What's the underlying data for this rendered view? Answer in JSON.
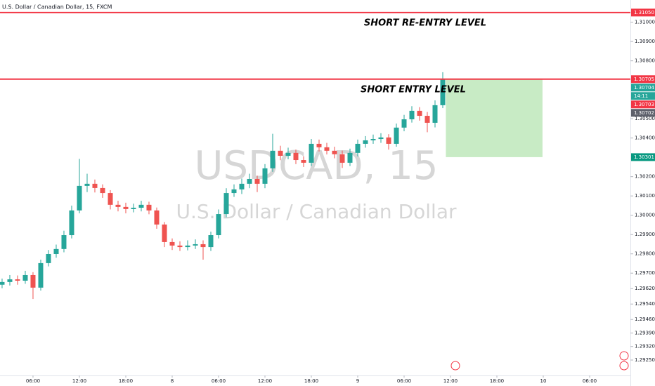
{
  "chart_data": {
    "type": "candlestick",
    "title": "U.S. Dollar / Canadian Dollar, 15, FXCM",
    "watermark": "USDCAD, 15",
    "watermark_subtitle": "U.S. Dollar / Canadian Dollar",
    "x": [
      2,
      3,
      4,
      5,
      6,
      7,
      8,
      9,
      10,
      11,
      12,
      13,
      14,
      15,
      16,
      17,
      18,
      19,
      20,
      21,
      22,
      23,
      24,
      25,
      26,
      27,
      28,
      29,
      30,
      31,
      32,
      33,
      34,
      35,
      36,
      37,
      38,
      39,
      40,
      41,
      42,
      43,
      44,
      45,
      46,
      47,
      48,
      49,
      50,
      51,
      52,
      53,
      54,
      55,
      56,
      57,
      58,
      59
    ],
    "open": [
      1.2964,
      1.29654,
      1.29668,
      1.29661,
      1.2969,
      1.29625,
      1.29752,
      1.29799,
      1.29825,
      1.29897,
      1.30025,
      1.30152,
      1.30163,
      1.30141,
      1.30115,
      1.30054,
      1.30043,
      1.30032,
      1.30039,
      1.30054,
      1.30025,
      1.29952,
      1.29861,
      1.29843,
      1.29835,
      1.29843,
      1.2985,
      1.29835,
      1.29897,
      1.30006,
      1.30115,
      1.30134,
      1.30163,
      1.30188,
      1.30163,
      1.30243,
      1.30334,
      1.30308,
      1.30323,
      1.30286,
      1.30272,
      1.3037,
      1.30352,
      1.30334,
      1.30316,
      1.30272,
      1.30323,
      1.3037,
      1.30388,
      1.30395,
      1.30403,
      1.3037,
      1.30454,
      1.30497,
      1.30541,
      1.30515,
      1.30479,
      1.3057
    ],
    "high": [
      1.29672,
      1.2969,
      1.29688,
      1.29712,
      1.29705,
      1.2977,
      1.2982,
      1.29848,
      1.2992,
      1.3005,
      1.30292,
      1.30215,
      1.30185,
      1.3016,
      1.3013,
      1.30075,
      1.30065,
      1.3006,
      1.30075,
      1.3007,
      1.3004,
      1.29965,
      1.2988,
      1.29865,
      1.2987,
      1.29875,
      1.2987,
      1.29915,
      1.3003,
      1.3014,
      1.3016,
      1.3019,
      1.30215,
      1.30205,
      1.30265,
      1.30422,
      1.3036,
      1.3035,
      1.3034,
      1.30305,
      1.30395,
      1.30392,
      1.30375,
      1.30355,
      1.30335,
      1.30345,
      1.30392,
      1.3041,
      1.30418,
      1.30425,
      1.3042,
      1.30475,
      1.3052,
      1.30565,
      1.3056,
      1.30535,
      1.30595,
      1.30741
    ],
    "low": [
      1.29622,
      1.29636,
      1.2964,
      1.29645,
      1.29566,
      1.2961,
      1.29735,
      1.2978,
      1.29808,
      1.2988,
      1.3001,
      1.3012,
      1.30118,
      1.3009,
      1.3003,
      1.3002,
      1.3001,
      1.30015,
      1.3002,
      1.30005,
      1.2993,
      1.29835,
      1.2982,
      1.29815,
      1.29818,
      1.29825,
      1.2977,
      1.29815,
      1.2988,
      1.2999,
      1.30095,
      1.3011,
      1.3014,
      1.3012,
      1.3014,
      1.30225,
      1.30285,
      1.3029,
      1.30265,
      1.3025,
      1.30255,
      1.3033,
      1.30315,
      1.30295,
      1.30245,
      1.30255,
      1.30305,
      1.3035,
      1.3037,
      1.30375,
      1.3034,
      1.30355,
      1.30435,
      1.3048,
      1.3049,
      1.3043,
      1.30455,
      1.30555
    ],
    "close": [
      1.29654,
      1.29668,
      1.29661,
      1.2969,
      1.29625,
      1.29752,
      1.29799,
      1.29825,
      1.29897,
      1.30025,
      1.30152,
      1.30163,
      1.30141,
      1.30115,
      1.30054,
      1.30043,
      1.30032,
      1.30039,
      1.30054,
      1.30025,
      1.29952,
      1.29861,
      1.29843,
      1.29835,
      1.29843,
      1.2985,
      1.29835,
      1.29897,
      1.30006,
      1.30115,
      1.30134,
      1.30163,
      1.30188,
      1.30163,
      1.30243,
      1.30334,
      1.30308,
      1.30323,
      1.30286,
      1.30272,
      1.3037,
      1.30352,
      1.30334,
      1.30316,
      1.30272,
      1.30323,
      1.3037,
      1.30388,
      1.30395,
      1.30403,
      1.3037,
      1.30454,
      1.30497,
      1.30541,
      1.30515,
      1.30479,
      1.3057,
      1.30704
    ],
    "up_color": "#26a69a",
    "down_color": "#ef5350",
    "xlim": [
      1.73,
      83.27
    ],
    "ylim": [
      1.2917,
      1.31115
    ],
    "xticks": [
      {
        "value": 6,
        "label": "06:00"
      },
      {
        "value": 12,
        "label": "12:00"
      },
      {
        "value": 18,
        "label": "18:00"
      },
      {
        "value": 24,
        "label": "8"
      },
      {
        "value": 30,
        "label": "06:00"
      },
      {
        "value": 36,
        "label": "12:00"
      },
      {
        "value": 42,
        "label": "18:00"
      },
      {
        "value": 48,
        "label": "9"
      },
      {
        "value": 54,
        "label": "06:00"
      },
      {
        "value": 60,
        "label": "12:00"
      },
      {
        "value": 66,
        "label": "18:00"
      },
      {
        "value": 72,
        "label": "10"
      },
      {
        "value": 78,
        "label": "06:00"
      }
    ],
    "yticks": [
      {
        "value": 1.31,
        "label": "1.31000"
      },
      {
        "value": 1.309,
        "label": "1.30900"
      },
      {
        "value": 1.308,
        "label": "1.30800"
      },
      {
        "value": 1.305,
        "label": "1.30500"
      },
      {
        "value": 1.304,
        "label": "1.30400"
      },
      {
        "value": 1.302,
        "label": "1.30200"
      },
      {
        "value": 1.301,
        "label": "1.30100"
      },
      {
        "value": 1.3,
        "label": "1.30000"
      },
      {
        "value": 1.299,
        "label": "1.29900"
      },
      {
        "value": 1.298,
        "label": "1.29800"
      },
      {
        "value": 1.297,
        "label": "1.29700"
      },
      {
        "value": 1.2962,
        "label": "1.29620"
      },
      {
        "value": 1.2954,
        "label": "1.29540"
      },
      {
        "value": 1.2946,
        "label": "1.29460"
      },
      {
        "value": 1.2939,
        "label": "1.29390"
      },
      {
        "value": 1.2932,
        "label": "1.29320"
      },
      {
        "value": 1.2925,
        "label": "1.29250"
      }
    ],
    "levels": [
      {
        "label": "SHORT RE-ENTRY LEVEL",
        "value": 1.3105,
        "color": "#f23645"
      },
      {
        "label": "SHORT ENTRY LEVEL",
        "value": 1.30705,
        "color": "#f23645"
      }
    ],
    "position_box": {
      "x": [
        59.4,
        71.9
      ],
      "y": [
        1.30705,
        1.30301
      ],
      "color": "#c8ebc5"
    },
    "price_labels": [
      {
        "value": 1.3105,
        "label": "1.31050",
        "color": "#f23645"
      },
      {
        "value": 1.30705,
        "label": "1.30705",
        "color": "#f23645"
      },
      {
        "value": 1.30704,
        "label": "1.30704",
        "color": "#26a69a"
      },
      {
        "label": "14:11",
        "color": "#26a69a"
      },
      {
        "value": 1.30703,
        "label": "1.30703",
        "color": "#f23645"
      },
      {
        "value": 1.30702,
        "label": "1.30702",
        "color": "#5d606b"
      },
      {
        "value": 1.30301,
        "label": "1.30301",
        "color": "#089981"
      }
    ]
  }
}
